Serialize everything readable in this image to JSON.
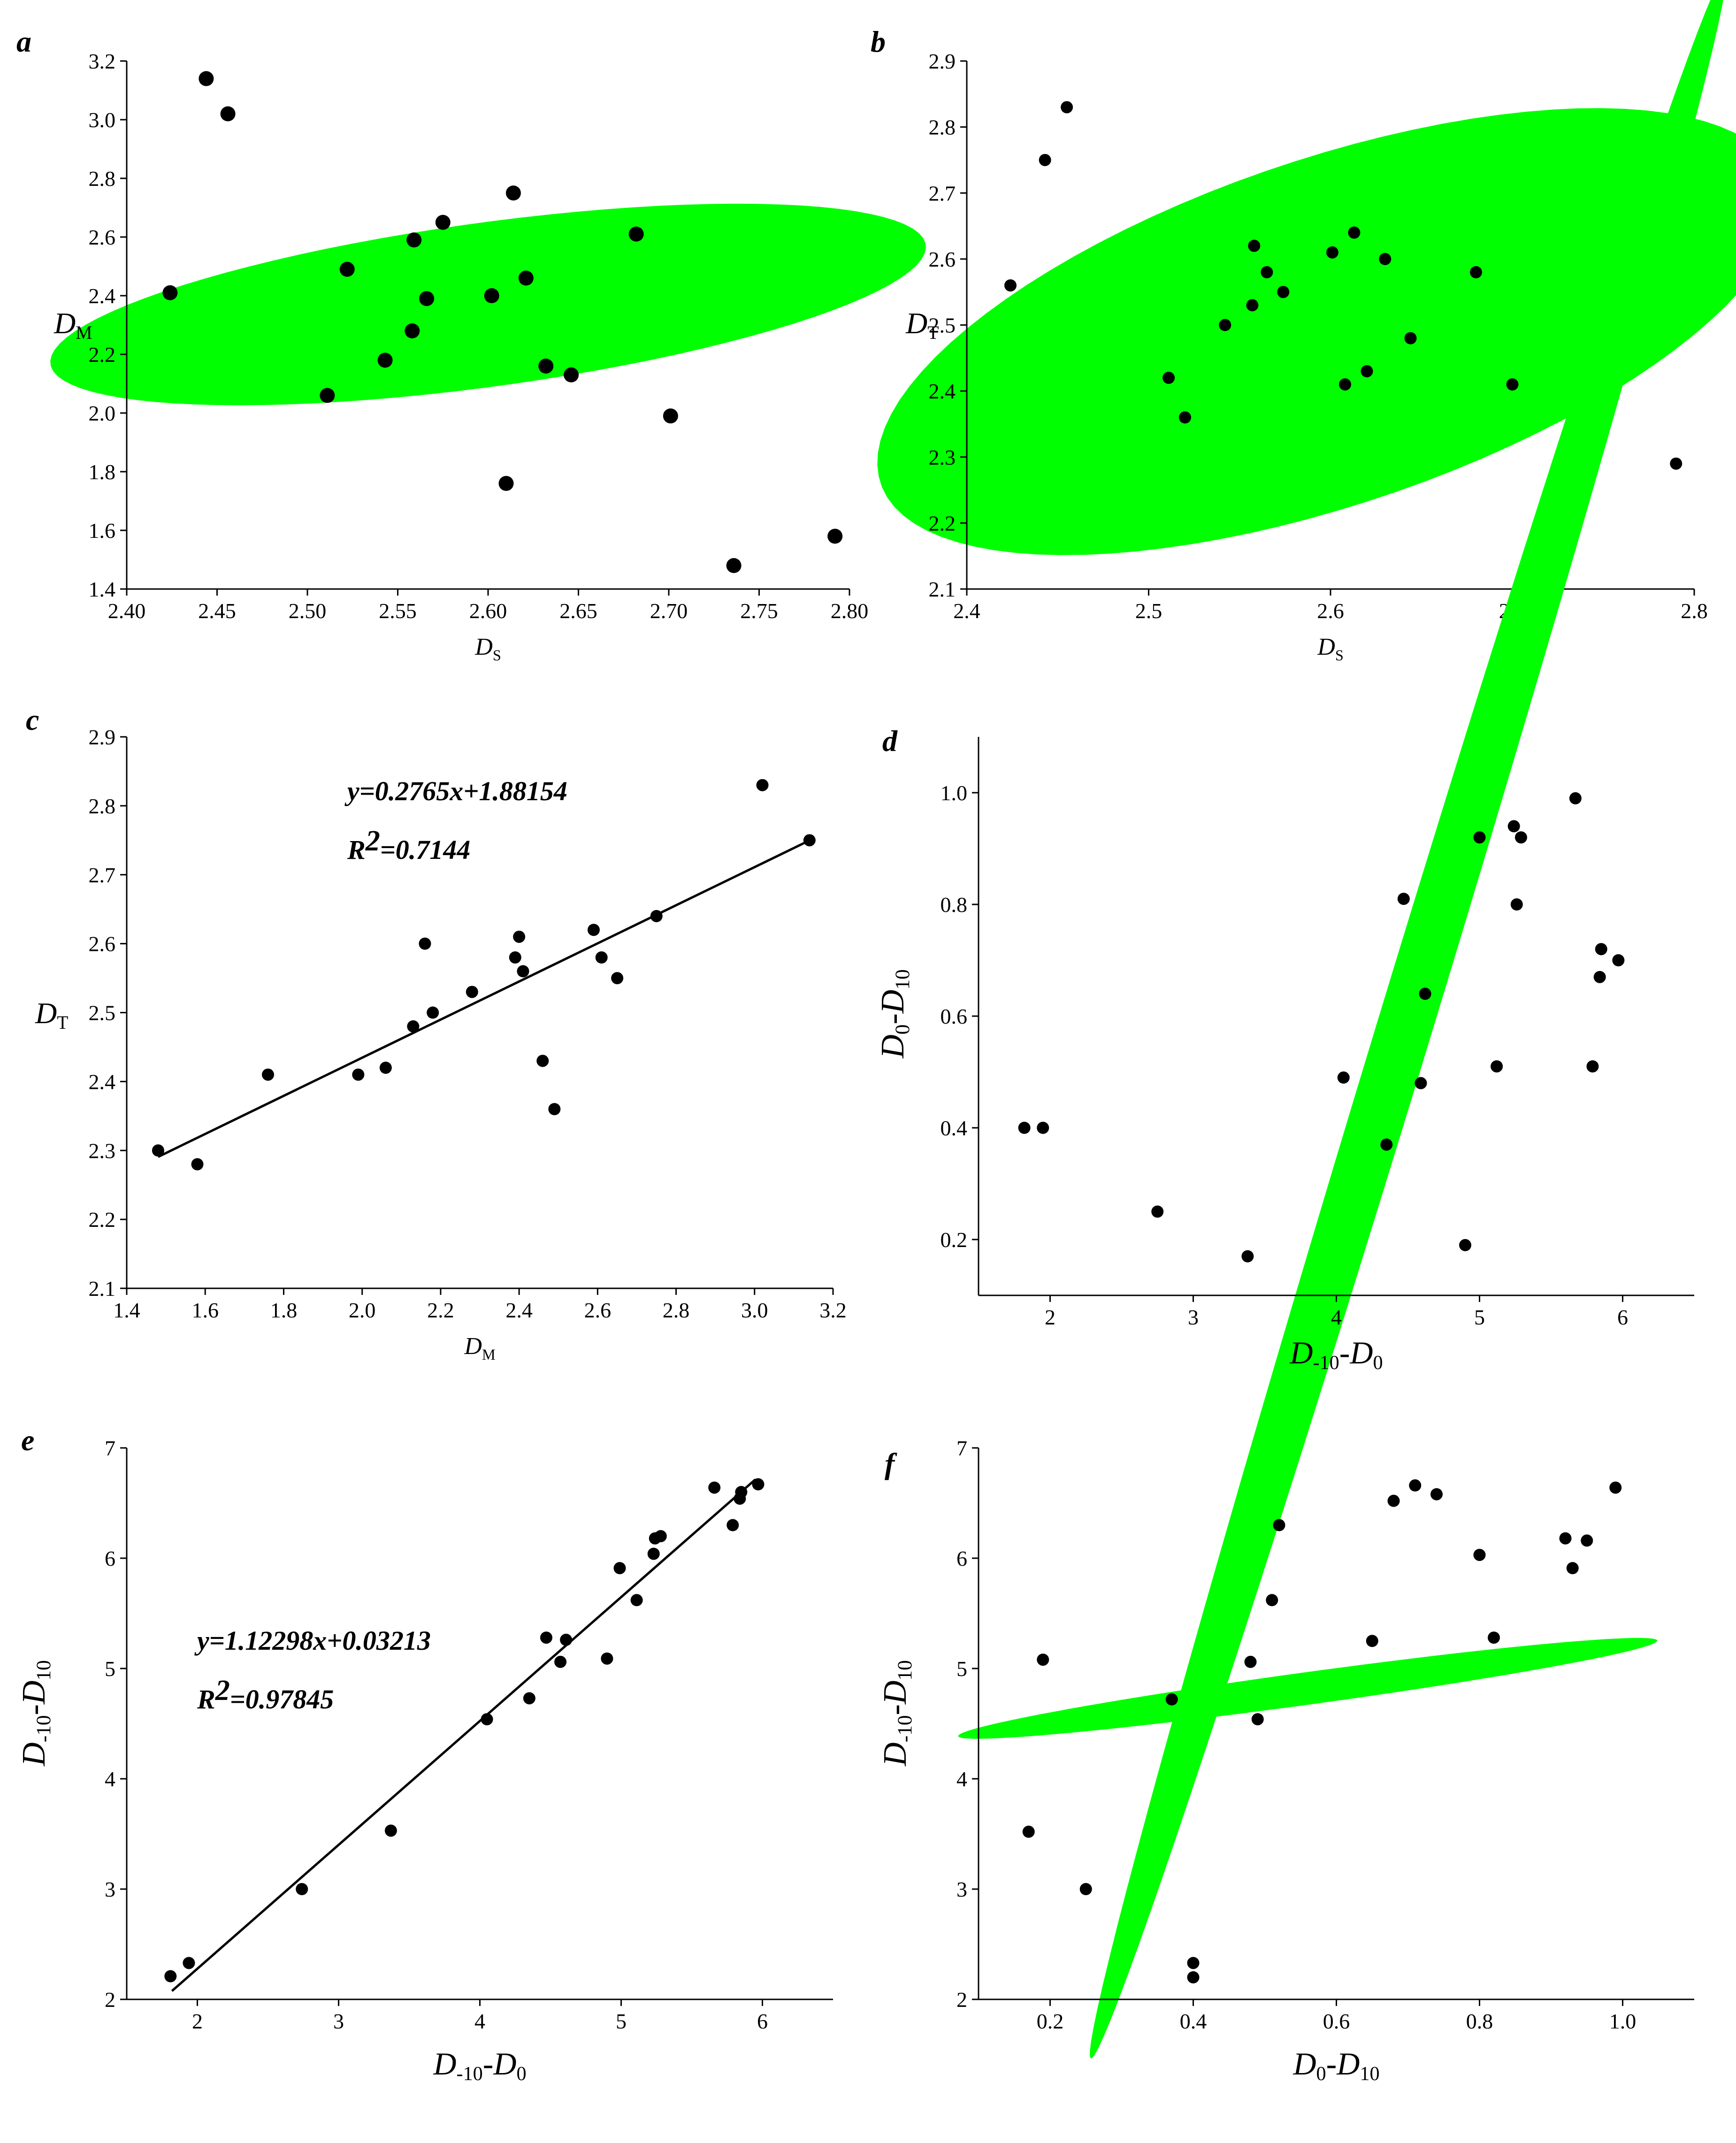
{
  "colors": {
    "ellipse": "#00FF00",
    "point": "#000000",
    "axis": "#000000"
  },
  "chart_data": [
    {
      "id": "a",
      "type": "scatter",
      "panel_label": "a",
      "xlabel": "D",
      "xlabel_sub": "S",
      "ylabel": "D",
      "ylabel_sub": "M",
      "xlim": [
        2.4,
        2.8
      ],
      "ylim": [
        1.4,
        3.2
      ],
      "xticks": [
        "2.40",
        "2.45",
        "2.50",
        "2.55",
        "2.60",
        "2.65",
        "2.70",
        "2.75",
        "2.80"
      ],
      "yticks": [
        "1.4",
        "1.6",
        "1.8",
        "2.0",
        "2.2",
        "2.4",
        "2.6",
        "2.8",
        "3.0",
        "3.2"
      ],
      "ellipse": {
        "center": [
          2.6,
          2.37
        ],
        "semi_major": 0.18,
        "semi_minor": 0.38,
        "angle_deg": -29
      },
      "points": [
        [
          2.444,
          3.14
        ],
        [
          2.456,
          3.02
        ],
        [
          2.424,
          2.41
        ],
        [
          2.511,
          2.06
        ],
        [
          2.522,
          2.49
        ],
        [
          2.543,
          2.18
        ],
        [
          2.559,
          2.59
        ],
        [
          2.558,
          2.28
        ],
        [
          2.566,
          2.39
        ],
        [
          2.575,
          2.65
        ],
        [
          2.602,
          2.4
        ],
        [
          2.614,
          2.75
        ],
        [
          2.621,
          2.46
        ],
        [
          2.61,
          1.76
        ],
        [
          2.632,
          2.16
        ],
        [
          2.646,
          2.13
        ],
        [
          2.682,
          2.61
        ],
        [
          2.701,
          1.99
        ],
        [
          2.736,
          1.48
        ],
        [
          2.792,
          1.58
        ]
      ]
    },
    {
      "id": "b",
      "type": "scatter",
      "panel_label": "b",
      "xlabel": "D",
      "xlabel_sub": "S",
      "ylabel": "D",
      "ylabel_sub": "T",
      "xlim": [
        2.4,
        2.8
      ],
      "ylim": [
        2.1,
        2.9
      ],
      "xticks": [
        "2.4",
        "2.5",
        "2.6",
        "2.7",
        "2.8"
      ],
      "yticks": [
        "2.1",
        "2.2",
        "2.3",
        "2.4",
        "2.5",
        "2.6",
        "2.7",
        "2.8",
        "2.9"
      ],
      "ellipse": {
        "center": [
          2.6,
          2.49
        ],
        "semi_major": 0.18,
        "semi_minor": 0.38,
        "angle_deg": -31
      },
      "points": [
        [
          2.455,
          2.83
        ],
        [
          2.443,
          2.75
        ],
        [
          2.424,
          2.56
        ],
        [
          2.511,
          2.42
        ],
        [
          2.52,
          2.36
        ],
        [
          2.542,
          2.5
        ],
        [
          2.558,
          2.62
        ],
        [
          2.557,
          2.53
        ],
        [
          2.565,
          2.58
        ],
        [
          2.574,
          2.55
        ],
        [
          2.601,
          2.61
        ],
        [
          2.613,
          2.64
        ],
        [
          2.63,
          2.6
        ],
        [
          2.608,
          2.41
        ],
        [
          2.62,
          2.43
        ],
        [
          2.644,
          2.48
        ],
        [
          2.68,
          2.58
        ],
        [
          2.7,
          2.41
        ],
        [
          2.735,
          2.3
        ],
        [
          2.79,
          2.29
        ]
      ]
    },
    {
      "id": "c",
      "type": "scatter",
      "panel_label": "c",
      "xlabel": "D",
      "xlabel_sub": "M",
      "ylabel": "D",
      "ylabel_sub": "T",
      "xlim": [
        1.4,
        3.2
      ],
      "ylim": [
        2.1,
        2.9
      ],
      "xticks": [
        "1.4",
        "1.6",
        "1.8",
        "2.0",
        "2.2",
        "2.4",
        "2.6",
        "2.8",
        "3.0",
        "3.2"
      ],
      "yticks": [
        "2.1",
        "2.2",
        "2.3",
        "2.4",
        "2.5",
        "2.6",
        "2.7",
        "2.8",
        "2.9"
      ],
      "equation": "y=0.2765x+1.88154",
      "r2_label": "R",
      "r2_sup": "2",
      "r2_value": "=0.7144",
      "fit": {
        "slope": 0.2765,
        "intercept": 1.88154,
        "x_range": [
          1.48,
          3.14
        ]
      },
      "points": [
        [
          1.48,
          2.3
        ],
        [
          1.58,
          2.28
        ],
        [
          1.76,
          2.41
        ],
        [
          1.99,
          2.41
        ],
        [
          2.06,
          2.42
        ],
        [
          2.13,
          2.48
        ],
        [
          2.16,
          2.6
        ],
        [
          2.18,
          2.5
        ],
        [
          2.28,
          2.53
        ],
        [
          2.39,
          2.58
        ],
        [
          2.4,
          2.61
        ],
        [
          2.41,
          2.56
        ],
        [
          2.46,
          2.43
        ],
        [
          2.49,
          2.36
        ],
        [
          2.59,
          2.62
        ],
        [
          2.61,
          2.58
        ],
        [
          2.65,
          2.55
        ],
        [
          2.75,
          2.64
        ],
        [
          3.02,
          2.83
        ],
        [
          3.14,
          2.75
        ]
      ]
    },
    {
      "id": "d",
      "type": "scatter",
      "panel_label": "d",
      "xlabel": "D",
      "xlabel_sub": "-10",
      "xlabel2": "-D",
      "xlabel2_sub": "0",
      "ylabel": "D",
      "ylabel_sub": "0",
      "ylabel2": "-D",
      "ylabel2_sub": "10",
      "xlim": [
        1.5,
        6.5
      ],
      "ylim": [
        0.1,
        1.1
      ],
      "xticks": [
        "2",
        "3",
        "4",
        "5",
        "6"
      ],
      "yticks": [
        "0.2",
        "0.4",
        "0.6",
        "0.8",
        "1.0"
      ],
      "ellipse": {
        "center": [
          4.5,
          0.6
        ],
        "semi_major": 2.9,
        "semi_minor": 0.13,
        "angle_deg": 40
      },
      "points": [
        [
          1.82,
          0.4
        ],
        [
          1.95,
          0.4
        ],
        [
          2.75,
          0.25
        ],
        [
          3.38,
          0.17
        ],
        [
          4.05,
          0.49
        ],
        [
          4.35,
          0.37
        ],
        [
          4.47,
          0.81
        ],
        [
          4.59,
          0.48
        ],
        [
          4.62,
          0.64
        ],
        [
          4.9,
          0.19
        ],
        [
          5.0,
          0.92
        ],
        [
          5.12,
          0.51
        ],
        [
          5.24,
          0.94
        ],
        [
          5.26,
          0.8
        ],
        [
          5.29,
          0.92
        ],
        [
          5.67,
          0.99
        ],
        [
          5.79,
          0.51
        ],
        [
          5.84,
          0.67
        ],
        [
          5.85,
          0.72
        ],
        [
          5.97,
          0.7
        ]
      ]
    },
    {
      "id": "e",
      "type": "scatter",
      "panel_label": "e",
      "xlabel": "D",
      "xlabel_sub": "-10",
      "xlabel2": "-D",
      "xlabel2_sub": "0",
      "ylabel": "D",
      "ylabel_sub": "-10",
      "ylabel2": "-D",
      "ylabel2_sub": "10",
      "xlim": [
        1.5,
        6.5
      ],
      "ylim": [
        2,
        7
      ],
      "xticks": [
        "2",
        "3",
        "4",
        "5",
        "6"
      ],
      "yticks": [
        "2",
        "3",
        "4",
        "5",
        "6",
        "7"
      ],
      "equation": "y=1.12298x+0.03213",
      "r2_label": "R",
      "r2_sup": "2",
      "r2_value": "=0.97845",
      "fit": {
        "slope": 1.12298,
        "intercept": 0.03213,
        "x_range": [
          1.82,
          5.95
        ]
      },
      "points": [
        [
          1.81,
          2.21
        ],
        [
          1.94,
          2.33
        ],
        [
          2.74,
          3.0
        ],
        [
          3.37,
          3.53
        ],
        [
          4.05,
          4.54
        ],
        [
          4.35,
          4.73
        ],
        [
          4.47,
          5.28
        ],
        [
          4.57,
          5.06
        ],
        [
          4.61,
          5.26
        ],
        [
          4.9,
          5.09
        ],
        [
          4.99,
          5.91
        ],
        [
          5.11,
          5.62
        ],
        [
          5.23,
          6.04
        ],
        [
          5.24,
          6.18
        ],
        [
          5.28,
          6.2
        ],
        [
          5.66,
          6.64
        ],
        [
          5.79,
          6.3
        ],
        [
          5.84,
          6.54
        ],
        [
          5.85,
          6.6
        ],
        [
          5.97,
          6.67
        ]
      ]
    },
    {
      "id": "f",
      "type": "scatter",
      "panel_label": "f",
      "xlabel": "D",
      "xlabel_sub": "0",
      "xlabel2": "-D",
      "xlabel2_sub": "10",
      "ylabel": "D",
      "ylabel_sub": "-10",
      "ylabel2": "-D",
      "ylabel2_sub": "10",
      "xlim": [
        0.1,
        1.1
      ],
      "ylim": [
        2,
        7
      ],
      "xticks": [
        "0.2",
        "0.4",
        "0.6",
        "0.8",
        "1.0"
      ],
      "yticks": [
        "2",
        "3",
        "4",
        "5",
        "6",
        "7"
      ],
      "ellipse": {
        "center": [
          0.56,
          4.82
        ],
        "semi_major": 0.66,
        "semi_minor": 0.11,
        "angle_deg": 43
      },
      "points": [
        [
          0.17,
          3.52
        ],
        [
          0.19,
          5.08
        ],
        [
          0.25,
          3.0
        ],
        [
          0.37,
          4.72
        ],
        [
          0.4,
          2.33
        ],
        [
          0.4,
          2.2
        ],
        [
          0.48,
          5.06
        ],
        [
          0.49,
          4.54
        ],
        [
          0.51,
          5.62
        ],
        [
          0.52,
          6.3
        ],
        [
          0.65,
          5.25
        ],
        [
          0.68,
          6.52
        ],
        [
          0.71,
          6.66
        ],
        [
          0.74,
          6.58
        ],
        [
          0.8,
          6.03
        ],
        [
          0.82,
          5.28
        ],
        [
          0.92,
          6.18
        ],
        [
          0.93,
          5.91
        ],
        [
          0.95,
          6.16
        ],
        [
          0.99,
          6.64
        ]
      ]
    }
  ]
}
